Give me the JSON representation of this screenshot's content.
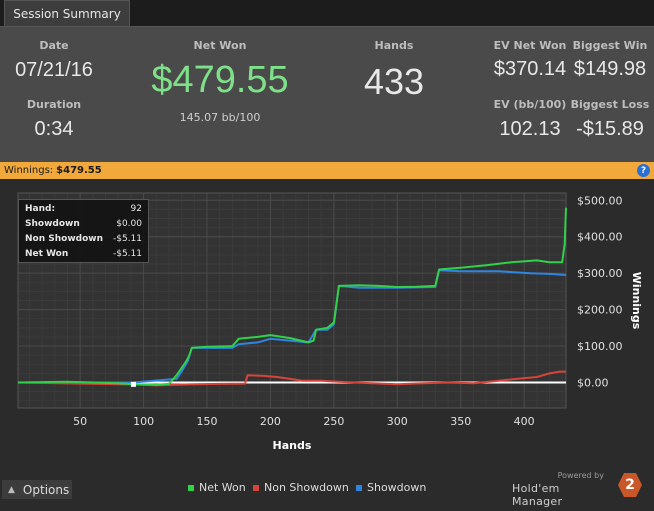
{
  "tab": {
    "label": "Session Summary"
  },
  "summary": {
    "date_label": "Date",
    "date": "07/21/16",
    "duration_label": "Duration",
    "duration": "0:34",
    "netwon_label": "Net Won",
    "netwon": "$479.55",
    "bb100": "145.07 bb/100",
    "hands_label": "Hands",
    "hands": "433",
    "ev_netwon_label": "EV Net Won",
    "ev_netwon": "$370.14",
    "ev_bb_label": "EV (bb/100)",
    "ev_bb": "102.13",
    "biggest_win_label": "Biggest Win",
    "biggest_win": "$149.98",
    "biggest_loss_label": "Biggest Loss",
    "biggest_loss": "-$15.89"
  },
  "banner": {
    "label": "Winnings:",
    "value": "$479.55",
    "help_icon": "?"
  },
  "tooltip": {
    "rows": [
      {
        "label": "Hand:",
        "value": "92"
      },
      {
        "label": "Showdown",
        "value": "$0.00"
      },
      {
        "label": "Non Showdown",
        "value": "-$5.11"
      },
      {
        "label": "Net Won",
        "value": "-$5.11"
      }
    ]
  },
  "options": {
    "label": "Options",
    "icon": "caret-up-icon"
  },
  "brand": {
    "powered": "Powered by",
    "name": "Hold'em Manager",
    "logo": "2"
  },
  "colors": {
    "net_won": "#32d14a",
    "non_showdown": "#d8443a",
    "showdown": "#2f86e0",
    "accent": "#f2a93b"
  },
  "chart_data": {
    "type": "line",
    "xlabel": "Hands",
    "ylabel": "Winnings",
    "xlim": [
      1,
      433
    ],
    "ylim": [
      -70,
      520
    ],
    "xticks": [
      50,
      100,
      150,
      200,
      250,
      300,
      350,
      400
    ],
    "yticks": [
      0,
      100,
      200,
      300,
      400,
      500
    ],
    "ytick_labels": [
      "$0.00",
      "$100.00",
      "$200.00",
      "$300.00",
      "$400.00",
      "$500.00"
    ],
    "xtick_labels": [
      "50",
      "100",
      "150",
      "200",
      "250",
      "300",
      "350",
      "400"
    ],
    "legend_position": "bottom-center",
    "grid": true,
    "series": [
      {
        "name": "Net Won",
        "color": "#32d14a",
        "points": [
          [
            1,
            0
          ],
          [
            40,
            2
          ],
          [
            80,
            -2
          ],
          [
            92,
            -5
          ],
          [
            110,
            -6
          ],
          [
            120,
            -4
          ],
          [
            126,
            20
          ],
          [
            130,
            40
          ],
          [
            134,
            60
          ],
          [
            136,
            75
          ],
          [
            138,
            95
          ],
          [
            150,
            98
          ],
          [
            170,
            100
          ],
          [
            175,
            120
          ],
          [
            190,
            125
          ],
          [
            200,
            130
          ],
          [
            215,
            122
          ],
          [
            230,
            110
          ],
          [
            234,
            115
          ],
          [
            236,
            145
          ],
          [
            245,
            150
          ],
          [
            250,
            165
          ],
          [
            254,
            265
          ],
          [
            270,
            267
          ],
          [
            285,
            265
          ],
          [
            300,
            262
          ],
          [
            315,
            263
          ],
          [
            330,
            265
          ],
          [
            333,
            310
          ],
          [
            350,
            315
          ],
          [
            370,
            322
          ],
          [
            390,
            330
          ],
          [
            410,
            335
          ],
          [
            420,
            330
          ],
          [
            430,
            330
          ],
          [
            432,
            380
          ],
          [
            433,
            479.55
          ]
        ]
      },
      {
        "name": "Non Showdown",
        "color": "#d8443a",
        "points": [
          [
            1,
            0
          ],
          [
            50,
            -3
          ],
          [
            92,
            -5.11
          ],
          [
            110,
            -8
          ],
          [
            125,
            -6
          ],
          [
            140,
            -5
          ],
          [
            160,
            -4
          ],
          [
            180,
            -3
          ],
          [
            182,
            20
          ],
          [
            195,
            18
          ],
          [
            205,
            15
          ],
          [
            215,
            10
          ],
          [
            225,
            5
          ],
          [
            240,
            5
          ],
          [
            254,
            2
          ],
          [
            280,
            -2
          ],
          [
            300,
            -5
          ],
          [
            320,
            -2
          ],
          [
            340,
            0
          ],
          [
            360,
            -2
          ],
          [
            380,
            5
          ],
          [
            395,
            10
          ],
          [
            410,
            15
          ],
          [
            420,
            25
          ],
          [
            428,
            30
          ],
          [
            433,
            30
          ]
        ]
      },
      {
        "name": "Showdown",
        "color": "#2f86e0",
        "points": [
          [
            1,
            0
          ],
          [
            92,
            0
          ],
          [
            126,
            10
          ],
          [
            130,
            30
          ],
          [
            135,
            60
          ],
          [
            138,
            95
          ],
          [
            150,
            95
          ],
          [
            170,
            95
          ],
          [
            175,
            105
          ],
          [
            190,
            110
          ],
          [
            200,
            120
          ],
          [
            215,
            115
          ],
          [
            230,
            110
          ],
          [
            236,
            145
          ],
          [
            245,
            145
          ],
          [
            250,
            160
          ],
          [
            254,
            265
          ],
          [
            270,
            260
          ],
          [
            300,
            260
          ],
          [
            330,
            262
          ],
          [
            333,
            308
          ],
          [
            350,
            305
          ],
          [
            380,
            305
          ],
          [
            405,
            300
          ],
          [
            420,
            298
          ],
          [
            433,
            295
          ]
        ]
      }
    ]
  }
}
